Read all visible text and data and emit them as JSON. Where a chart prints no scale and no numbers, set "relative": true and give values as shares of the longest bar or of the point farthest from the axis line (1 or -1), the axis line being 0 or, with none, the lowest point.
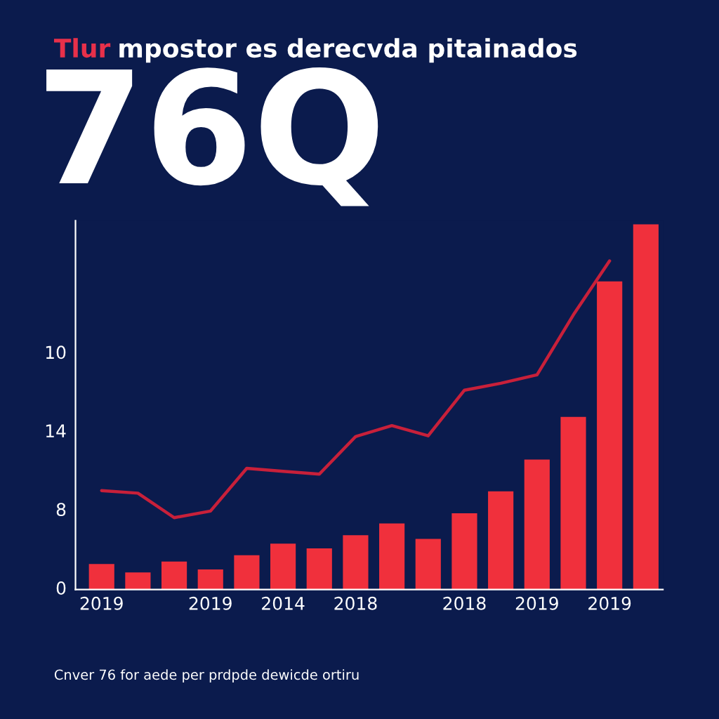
{
  "chart_data": {
    "type": "bar",
    "relative": true,
    "title": "Tlur mpostor es derecvda pitainados",
    "annotations": [
      "76Q",
      "Cnver 76 for aede per prdpde dewicde ortiru",
      "0",
      "8",
      "14",
      "10"
    ],
    "categories": [
      "2019",
      null,
      null,
      "2019",
      null,
      "2014",
      null,
      "2018",
      null,
      null,
      "2018",
      null,
      "2019",
      null,
      "2019",
      null
    ],
    "series": [
      {
        "color": "#f0303c",
        "values": [
          0.07,
          0.047,
          0.077,
          0.055,
          0.094,
          0.126,
          0.113,
          0.149,
          0.181,
          0.139,
          0.209,
          0.269,
          0.356,
          0.473,
          0.844,
          1
        ]
      },
      {
        "type": "line",
        "color": "#c8203a",
        "values": [
          0.271,
          0.264,
          0.197,
          0.215,
          0.332,
          0.324,
          0.316,
          0.419,
          0.449,
          0.421,
          0.546,
          0.565,
          0.588,
          0.752,
          0.9,
          null
        ]
      }
    ]
  }
}
